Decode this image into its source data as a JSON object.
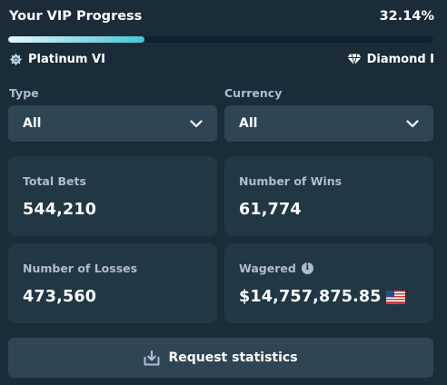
{
  "vip": {
    "title": "Your VIP Progress",
    "percent_label": "32.14%",
    "progress_fraction": 0.3214,
    "current_rank": "Platinum VI",
    "next_rank": "Diamond I",
    "current_rank_icon": "platinum-star-icon",
    "next_rank_icon": "diamond-icon"
  },
  "filters": {
    "type": {
      "label": "Type",
      "value": "All"
    },
    "currency": {
      "label": "Currency",
      "value": "All"
    }
  },
  "stats": {
    "total_bets": {
      "label": "Total Bets",
      "value": "544,210"
    },
    "wins": {
      "label": "Number of Wins",
      "value": "61,774"
    },
    "losses": {
      "label": "Number of Losses",
      "value": "473,560"
    },
    "wagered": {
      "label": "Wagered",
      "value": "$14,757,875.85",
      "info_icon": "info-icon",
      "currency_icon": "us-flag-icon"
    }
  },
  "actions": {
    "request_label": "Request statistics",
    "request_icon": "download-tray-icon"
  },
  "colors": {
    "background": "#1a2c38",
    "card": "#213743",
    "control": "#2f4553",
    "muted_text": "#b1bad3",
    "progress_accent": "#45c7d6"
  }
}
